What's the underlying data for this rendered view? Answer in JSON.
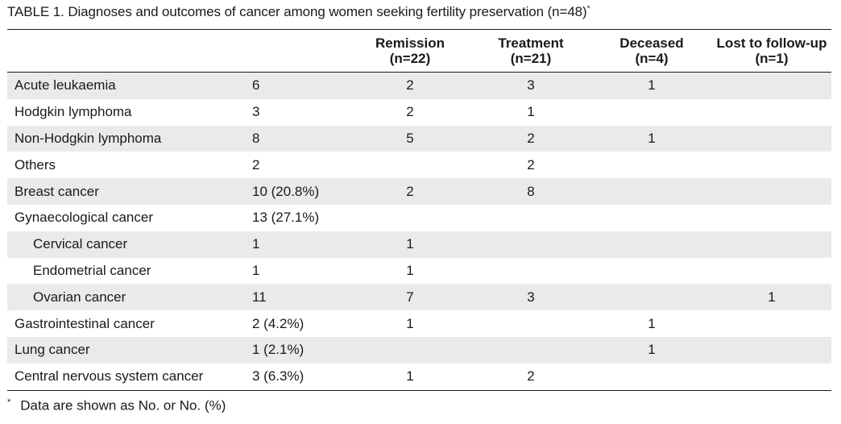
{
  "title": "TABLE 1. Diagnoses and outcomes of cancer among women seeking fertility preservation (n=48)",
  "title_mark": "*",
  "columns": [
    {
      "line1": "Remission",
      "line2": "(n=22)"
    },
    {
      "line1": "Treatment",
      "line2": "(n=21)"
    },
    {
      "line1": "Deceased",
      "line2": "(n=4)"
    },
    {
      "line1": "Lost to follow-up",
      "line2": "(n=1)"
    }
  ],
  "rows": [
    {
      "label": "Acute leukaemia",
      "total": "6",
      "remission": "2",
      "treatment": "3",
      "deceased": "1",
      "lost": "",
      "shaded": true,
      "sub": false
    },
    {
      "label": "Hodgkin lymphoma",
      "total": "3",
      "remission": "2",
      "treatment": "1",
      "deceased": "",
      "lost": "",
      "shaded": false,
      "sub": false
    },
    {
      "label": "Non-Hodgkin lymphoma",
      "total": "8",
      "remission": "5",
      "treatment": "2",
      "deceased": "1",
      "lost": "",
      "shaded": true,
      "sub": false
    },
    {
      "label": "Others",
      "total": "2",
      "remission": "",
      "treatment": "2",
      "deceased": "",
      "lost": "",
      "shaded": false,
      "sub": false
    },
    {
      "label": "Breast cancer",
      "total": "10 (20.8%)",
      "remission": "2",
      "treatment": "8",
      "deceased": "",
      "lost": "",
      "shaded": true,
      "sub": false
    },
    {
      "label": "Gynaecological cancer",
      "total": "13 (27.1%)",
      "remission": "",
      "treatment": "",
      "deceased": "",
      "lost": "",
      "shaded": false,
      "sub": false
    },
    {
      "label": "Cervical cancer",
      "total": "1",
      "remission": "1",
      "treatment": "",
      "deceased": "",
      "lost": "",
      "shaded": true,
      "sub": true
    },
    {
      "label": "Endometrial cancer",
      "total": "1",
      "remission": "1",
      "treatment": "",
      "deceased": "",
      "lost": "",
      "shaded": false,
      "sub": true
    },
    {
      "label": "Ovarian cancer",
      "total": "11",
      "remission": "7",
      "treatment": "3",
      "deceased": "",
      "lost": "1",
      "shaded": true,
      "sub": true
    },
    {
      "label": "Gastrointestinal cancer",
      "total": "2 (4.2%)",
      "remission": "1",
      "treatment": "",
      "deceased": "1",
      "lost": "",
      "shaded": false,
      "sub": false
    },
    {
      "label": "Lung cancer",
      "total": "1 (2.1%)",
      "remission": "",
      "treatment": "",
      "deceased": "1",
      "lost": "",
      "shaded": true,
      "sub": false
    },
    {
      "label": "Central nervous system cancer",
      "total": "3 (6.3%)",
      "remission": "1",
      "treatment": "2",
      "deceased": "",
      "lost": "",
      "shaded": false,
      "sub": false
    }
  ],
  "footnote": {
    "mark": "*",
    "text": "Data are shown as No. or No. (%)"
  },
  "colors": {
    "shade": "#eaeaea",
    "text": "#1a1a1a",
    "rule": "#1a1a1a"
  }
}
